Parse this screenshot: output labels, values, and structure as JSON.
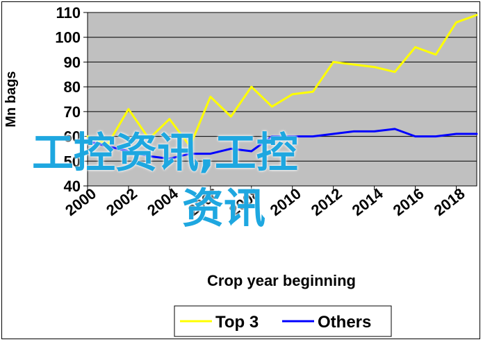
{
  "chart_data": {
    "type": "line",
    "title": "",
    "xlabel": "Crop year beginning",
    "ylabel": "Mn bags",
    "xlim": [
      2000,
      2019
    ],
    "ylim": [
      40,
      110
    ],
    "xticks": [
      "2000",
      "2002",
      "2004",
      "2006",
      "2008",
      "2010",
      "2012",
      "2014",
      "2016",
      "2018"
    ],
    "yticks": [
      "40",
      "50",
      "60",
      "70",
      "80",
      "90",
      "100",
      "110"
    ],
    "grid": "horizontal",
    "legend_position": "bottom",
    "series": [
      {
        "name": "Top 3",
        "color": "#ffff00",
        "x": [
          2000,
          2001,
          2002,
          2003,
          2004,
          2005,
          2006,
          2007,
          2008,
          2009,
          2010,
          2011,
          2012,
          2013,
          2014,
          2015,
          2016,
          2017,
          2018,
          2019
        ],
        "y": [
          60,
          57,
          71,
          59,
          67,
          56,
          76,
          68,
          80,
          72,
          77,
          78,
          90,
          89,
          88,
          86,
          96,
          93,
          106,
          109
        ]
      },
      {
        "name": "Others",
        "color": "#0000ff",
        "x": [
          2000,
          2001,
          2002,
          2003,
          2004,
          2005,
          2006,
          2007,
          2008,
          2009,
          2010,
          2011,
          2012,
          2013,
          2014,
          2015,
          2016,
          2017,
          2018,
          2019
        ],
        "y": [
          58,
          56,
          54,
          52,
          51,
          53,
          53,
          55,
          54,
          60,
          60,
          60,
          61,
          62,
          62,
          63,
          60,
          60,
          61,
          61
        ]
      }
    ]
  },
  "watermark": {
    "line1": "工控资讯,工控",
    "line2": "资讯"
  }
}
